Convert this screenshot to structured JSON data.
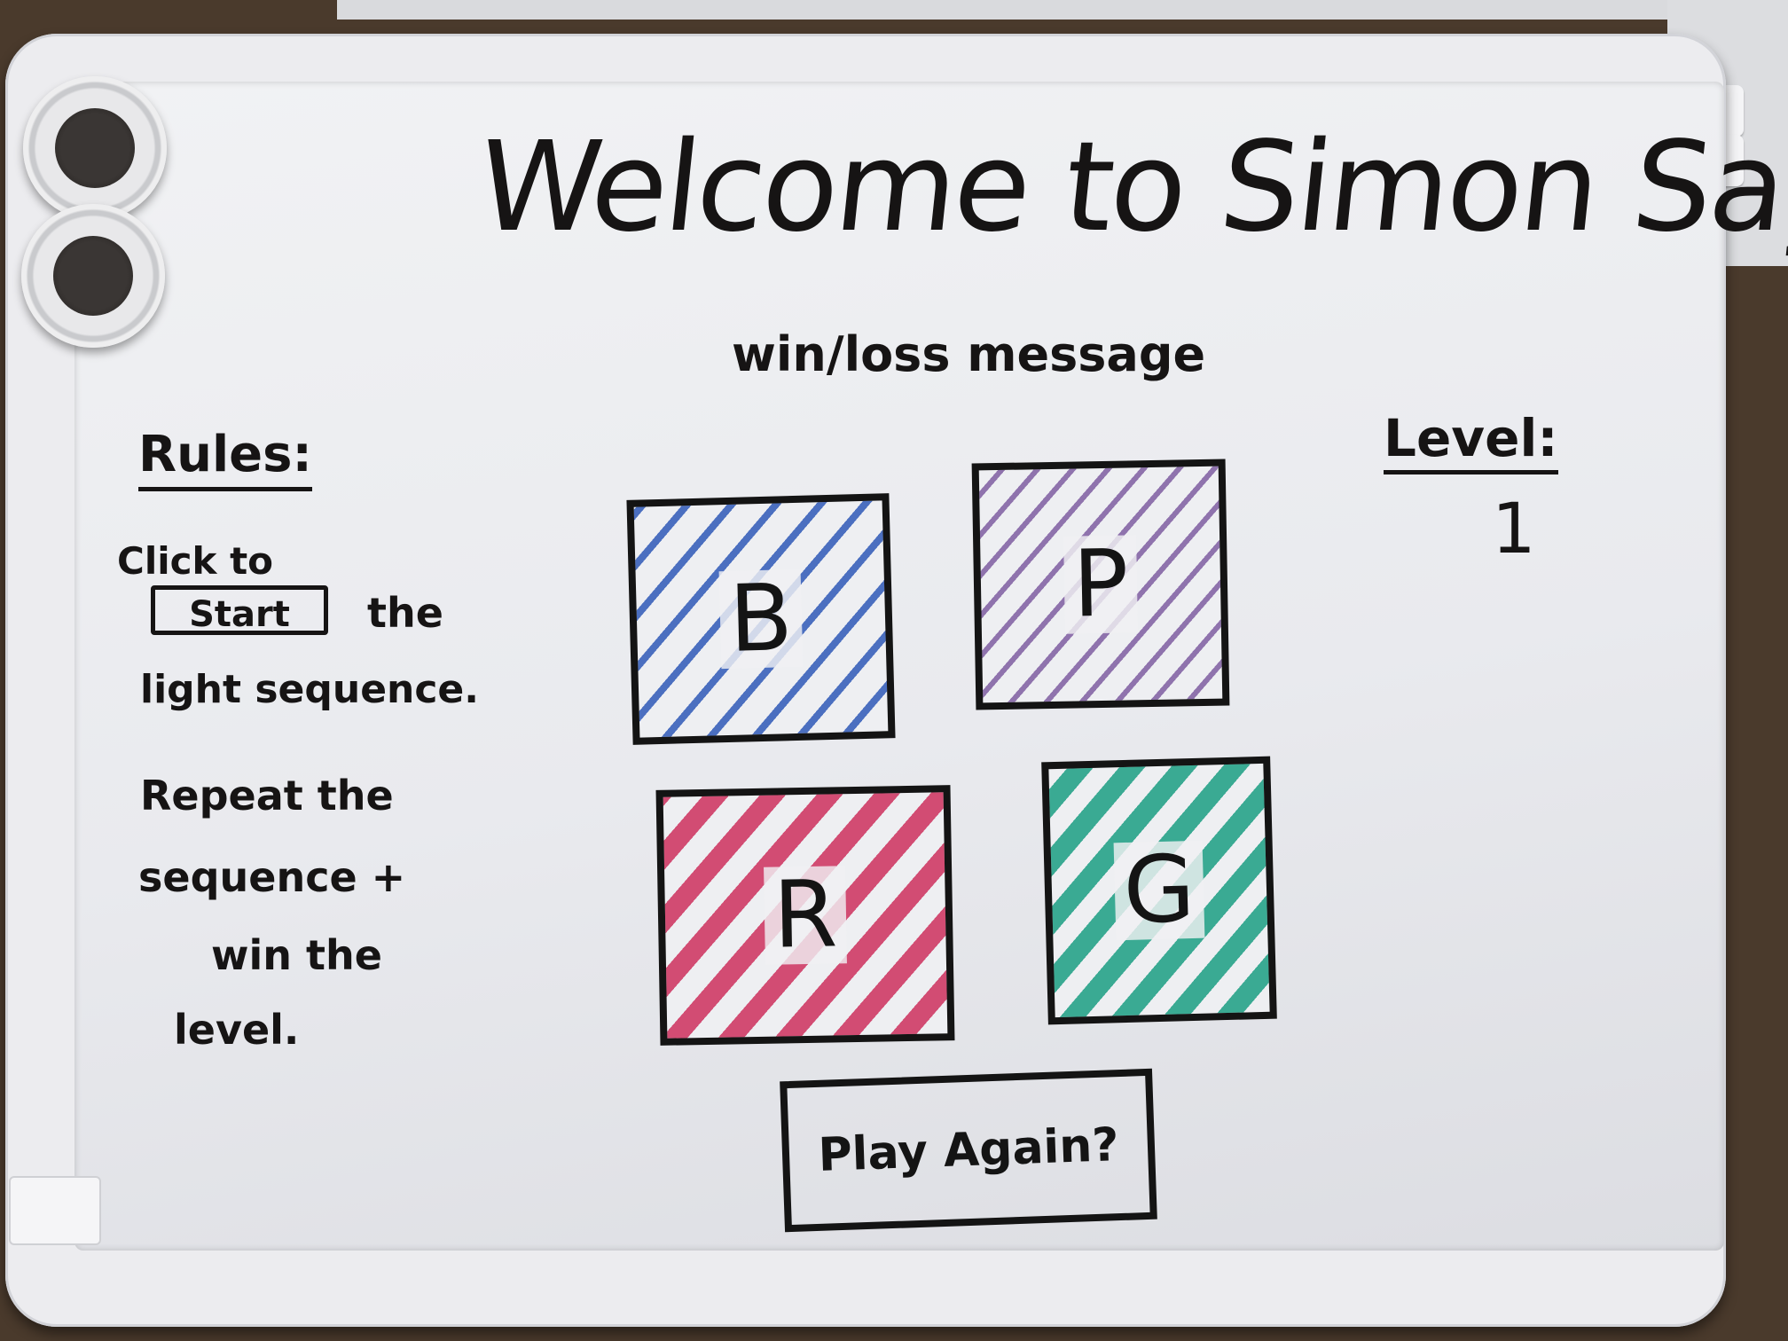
{
  "header": {
    "title": "Welcome to Simon Says",
    "status_message": "win/loss message"
  },
  "rules": {
    "heading": "Rules:",
    "line1_prefix": "Click to",
    "start_button_label": "Start",
    "line2_suffix": "the",
    "line3": "light sequence.",
    "line4": "Repeat the",
    "line5": "sequence +",
    "line6": "win the",
    "line7": "level."
  },
  "level": {
    "label": "Level:",
    "value": "1"
  },
  "pads": [
    {
      "letter": "B",
      "color": "#4b6fc0"
    },
    {
      "letter": "P",
      "color": "#8f73ad"
    },
    {
      "letter": "R",
      "color": "#d24c73"
    },
    {
      "letter": "G",
      "color": "#3aaa93"
    }
  ],
  "play_again_label": "Play Again?"
}
